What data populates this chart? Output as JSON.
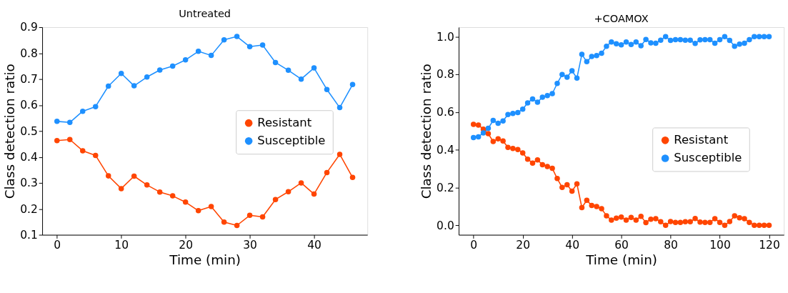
{
  "chart_data": [
    {
      "type": "line",
      "title": "Untreated",
      "xlabel": "Time (min)",
      "ylabel": "Class detection ratio",
      "marker": "circle",
      "line_style": "solid",
      "grid": false,
      "legend": "center right",
      "x": [
        0,
        2,
        4,
        6,
        8,
        10,
        12,
        14,
        16,
        18,
        20,
        22,
        24,
        26,
        28,
        30,
        32,
        34,
        36,
        38,
        40,
        42,
        44,
        46
      ],
      "xlim": [
        -2.3,
        48.3
      ],
      "xticks": [
        0,
        10,
        20,
        30,
        40
      ],
      "ylim": [
        0.1,
        0.9
      ],
      "yticks": [
        0.1,
        0.2,
        0.3,
        0.4,
        0.5,
        0.6,
        0.7,
        0.8,
        0.9
      ],
      "series": [
        {
          "name": "Resistant",
          "color": "#ff4500",
          "values": [
            0.463,
            0.467,
            0.424,
            0.406,
            0.327,
            0.278,
            0.326,
            0.292,
            0.265,
            0.25,
            0.226,
            0.193,
            0.209,
            0.149,
            0.136,
            0.175,
            0.169,
            0.236,
            0.266,
            0.3,
            0.257,
            0.34,
            0.41,
            0.321
          ]
        },
        {
          "name": "Susceptible",
          "color": "#1e90ff",
          "values": [
            0.537,
            0.533,
            0.576,
            0.594,
            0.673,
            0.722,
            0.674,
            0.708,
            0.735,
            0.75,
            0.774,
            0.807,
            0.791,
            0.851,
            0.864,
            0.825,
            0.831,
            0.764,
            0.734,
            0.7,
            0.743,
            0.66,
            0.59,
            0.679
          ]
        }
      ]
    },
    {
      "type": "line",
      "title": "+COAMOX",
      "xlabel": "Time (min)",
      "ylabel": "Class detection ratio",
      "marker": "circle",
      "line_style": "solid",
      "grid": false,
      "legend": "bottom right",
      "x": [
        0,
        2,
        4,
        6,
        8,
        10,
        12,
        14,
        16,
        18,
        20,
        22,
        24,
        26,
        28,
        30,
        32,
        34,
        36,
        38,
        40,
        42,
        44,
        46,
        48,
        50,
        52,
        54,
        56,
        58,
        60,
        62,
        64,
        66,
        68,
        70,
        72,
        74,
        76,
        78,
        80,
        82,
        84,
        86,
        88,
        90,
        92,
        94,
        96,
        98,
        100,
        102,
        104,
        106,
        108,
        110,
        112,
        114,
        116,
        118,
        120
      ],
      "xlim": [
        -6,
        126
      ],
      "xticks": [
        0,
        20,
        40,
        60,
        80,
        100,
        120
      ],
      "ylim": [
        -0.05,
        1.05
      ],
      "yticks": [
        {
          "value": 0,
          "label": "0.0"
        },
        0.2,
        0.4,
        0.6,
        0.8,
        {
          "value": 1,
          "label": "1.0"
        }
      ],
      "series": [
        {
          "name": "Resistant",
          "color": "#ff4500",
          "values": [
            0.535,
            0.531,
            0.51,
            0.486,
            0.444,
            0.459,
            0.447,
            0.413,
            0.407,
            0.402,
            0.384,
            0.351,
            0.33,
            0.347,
            0.321,
            0.312,
            0.302,
            0.248,
            0.201,
            0.215,
            0.181,
            0.22,
            0.094,
            0.133,
            0.105,
            0.1,
            0.088,
            0.051,
            0.028,
            0.038,
            0.044,
            0.028,
            0.042,
            0.028,
            0.048,
            0.015,
            0.033,
            0.035,
            0.019,
            0.0,
            0.02,
            0.016,
            0.016,
            0.019,
            0.019,
            0.036,
            0.017,
            0.016,
            0.016,
            0.035,
            0.016,
            0.0,
            0.02,
            0.051,
            0.04,
            0.035,
            0.016,
            0.0,
            0.0,
            0.0,
            0.0
          ]
        },
        {
          "name": "Susceptible",
          "color": "#1e90ff",
          "values": [
            0.465,
            0.469,
            0.49,
            0.514,
            0.556,
            0.541,
            0.553,
            0.587,
            0.593,
            0.598,
            0.616,
            0.649,
            0.67,
            0.653,
            0.679,
            0.688,
            0.698,
            0.752,
            0.799,
            0.785,
            0.819,
            0.78,
            0.906,
            0.867,
            0.895,
            0.9,
            0.912,
            0.949,
            0.972,
            0.962,
            0.956,
            0.972,
            0.958,
            0.972,
            0.952,
            0.985,
            0.967,
            0.965,
            0.981,
            1.0,
            0.98,
            0.984,
            0.984,
            0.981,
            0.981,
            0.964,
            0.983,
            0.984,
            0.984,
            0.965,
            0.984,
            1.0,
            0.98,
            0.949,
            0.96,
            0.965,
            0.984,
            1.0,
            1.0,
            1.0,
            1.0
          ]
        }
      ]
    }
  ]
}
